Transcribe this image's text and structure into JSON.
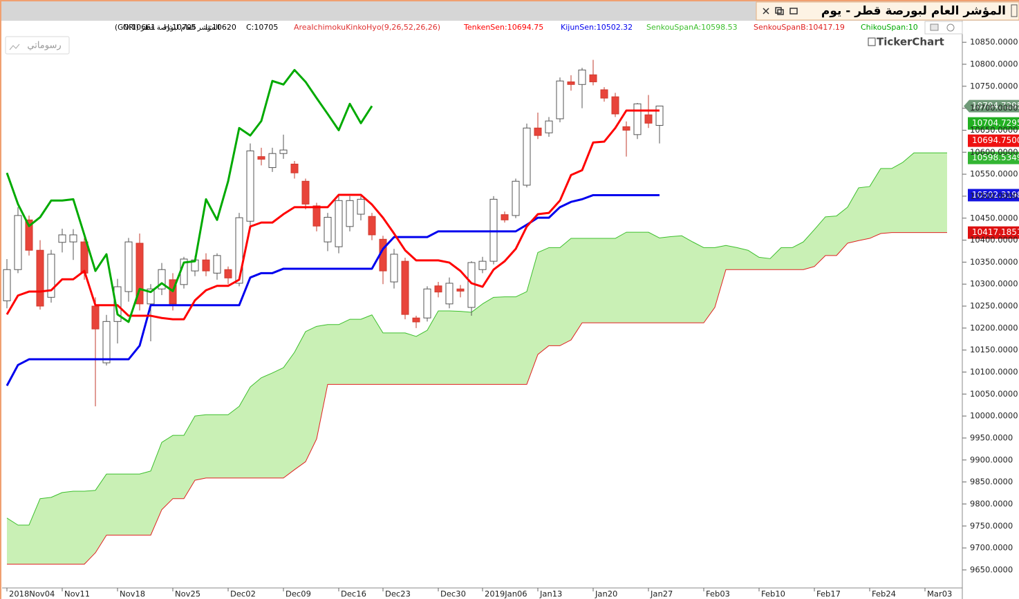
{
  "chart_data": {
    "type": "candlestick",
    "title": "المؤشر العام لبورصة قطر - يوم",
    "symbol": "المؤشر العام لبورصة قطر (GNRI)",
    "ohlc": [
      "O:10661",
      "H:10705",
      "L:10620",
      "C:10705"
    ],
    "indicator": "AreaIchimokuKinkoHyo(9,26,52,26,26)",
    "button_label": "رسوماتي",
    "watermark": "TickerChart",
    "up_color": "#ffffff",
    "down_color": "#e8443a",
    "cloud_color": "#c9f0b5",
    "categories": [
      "2018Nov04",
      null,
      null,
      null,
      null,
      "Nov11",
      null,
      null,
      null,
      null,
      "Nov18",
      null,
      null,
      null,
      null,
      "Nov25",
      null,
      null,
      null,
      null,
      "Dec02",
      null,
      null,
      null,
      null,
      "Dec09",
      null,
      null,
      null,
      null,
      "Dec16",
      null,
      null,
      null,
      "Dec23",
      null,
      null,
      null,
      null,
      "Dec30",
      null,
      null,
      null,
      "2019Jan06",
      null,
      null,
      null,
      null,
      "Jan13",
      null,
      null,
      null,
      null,
      "Jan20",
      null,
      null,
      null,
      null,
      "Jan27",
      null,
      null,
      null,
      null,
      "Feb03",
      null,
      null,
      null,
      null,
      "Feb10",
      null,
      null,
      null,
      null,
      "Feb17",
      null,
      null,
      null,
      null,
      "Feb24",
      null,
      null,
      null,
      null,
      "Mar03",
      null,
      null
    ],
    "open": [
      10262,
      10333,
      10446,
      10377,
      10270,
      10395,
      10396,
      10396,
      10250,
      10121,
      10215,
      10283,
      10393,
      10255,
      10289,
      10310,
      10299,
      10330,
      10355,
      10325,
      10333,
      10302,
      10443,
      10590,
      10565,
      10597,
      10573,
      10534,
      10478,
      10396,
      10385,
      10431,
      10459,
      10454,
      10402,
      10305,
      10352,
      10223,
      10223,
      10296,
      10255,
      10289,
      10247,
      10333,
      10352,
      10458,
      10456,
      10525,
      10655,
      10644,
      10676,
      10760,
      10754,
      10776,
      10742,
      10726,
      10658,
      10640,
      10685,
      10661,
      null,
      null,
      null,
      null,
      null,
      null,
      null,
      null,
      null,
      null,
      null,
      null,
      null,
      null,
      null,
      null,
      null,
      null,
      null,
      null,
      null,
      null,
      null,
      null,
      null,
      null
    ],
    "high": [
      10357,
      10475,
      10456,
      10400,
      10378,
      10426,
      10425,
      10405,
      10270,
      10230,
      10312,
      10405,
      10415,
      10300,
      10348,
      10325,
      10362,
      10364,
      10370,
      10370,
      10340,
      10462,
      10620,
      10610,
      10610,
      10640,
      10580,
      10540,
      10485,
      10462,
      10505,
      10500,
      10500,
      10462,
      10410,
      10380,
      10360,
      10228,
      10295,
      10305,
      10315,
      10298,
      10352,
      10362,
      10500,
      10465,
      10540,
      10665,
      10690,
      10680,
      10770,
      10775,
      10792,
      10810,
      10748,
      10735,
      10670,
      10712,
      10730,
      10705,
      null,
      null,
      null,
      null,
      null,
      null,
      null,
      null,
      null,
      null,
      null,
      null,
      null,
      null,
      null,
      null,
      null,
      null,
      null,
      null,
      null,
      null,
      null,
      null,
      null,
      null
    ],
    "low": [
      10245,
      10325,
      10365,
      10242,
      10258,
      10372,
      10355,
      10310,
      10022,
      10115,
      10165,
      10260,
      10240,
      10170,
      10275,
      10240,
      10290,
      10318,
      10318,
      10310,
      10300,
      10295,
      10430,
      10570,
      10555,
      10585,
      10540,
      10470,
      10420,
      10375,
      10370,
      10420,
      10445,
      10400,
      10300,
      10290,
      10220,
      10200,
      10215,
      10270,
      10245,
      10270,
      10228,
      10325,
      10345,
      10440,
      10450,
      10520,
      10630,
      10635,
      10668,
      10740,
      10700,
      10752,
      10715,
      10680,
      10590,
      10630,
      10655,
      10620,
      null,
      null,
      null,
      null,
      null,
      null,
      null,
      null,
      null,
      null,
      null,
      null,
      null,
      null,
      null,
      null,
      null,
      null,
      null,
      null,
      null,
      null,
      null,
      null,
      null,
      null
    ],
    "close": [
      10333,
      10456,
      10377,
      10250,
      10368,
      10412,
      10412,
      10325,
      10198,
      10215,
      10294,
      10396,
      10255,
      10289,
      10333,
      10255,
      10357,
      10355,
      10330,
      10365,
      10314,
      10451,
      10603,
      10584,
      10597,
      10605,
      10553,
      10482,
      10432,
      10452,
      10490,
      10490,
      10493,
      10412,
      10330,
      10368,
      10231,
      10214,
      10289,
      10282,
      10302,
      10284,
      10349,
      10352,
      10493,
      10446,
      10534,
      10655,
      10638,
      10671,
      10762,
      10754,
      10787,
      10760,
      10723,
      10687,
      10650,
      10710,
      10666,
      10705,
      null,
      null,
      null,
      null,
      null,
      null,
      null,
      null,
      null,
      null,
      null,
      null,
      null,
      null,
      null,
      null,
      null,
      null,
      null,
      null,
      null,
      null,
      null,
      null,
      null,
      null
    ],
    "series": [
      {
        "name": "TenkenSen:10694.75",
        "color": "#ff0000",
        "values": [
          10231,
          10274,
          10283,
          10283,
          10286,
          10311,
          10311,
          10330,
          10252,
          10252,
          10252,
          10228,
          10228,
          10228,
          10223,
          10220,
          10220,
          10263,
          10286,
          10296,
          10296,
          10310,
          10431,
          10440,
          10440,
          10459,
          10475,
          10475,
          10475,
          10475,
          10503,
          10503,
          10503,
          10481,
          10451,
          10415,
          10377,
          10354,
          10354,
          10354,
          10349,
          10330,
          10302,
          10294,
          10333,
          10352,
          10380,
          10431,
          10459,
          10462,
          10490,
          10548,
          10559,
          10622,
          10624,
          10655,
          10694.75,
          10694.75,
          10694.75,
          10694.75,
          null,
          null,
          null,
          null,
          null,
          null,
          null,
          null,
          null,
          null,
          null,
          null,
          null,
          null,
          null,
          null,
          null,
          null,
          null,
          null,
          null,
          null,
          null,
          null,
          null,
          null
        ]
      },
      {
        "name": "KijunSen:10502.32",
        "color": "#0000ee",
        "values": [
          10069,
          10116,
          10129,
          10129,
          10129,
          10129,
          10129,
          10129,
          10129,
          10129,
          10129,
          10129,
          10160,
          10252,
          10252,
          10252,
          10252,
          10252,
          10252,
          10252,
          10252,
          10252,
          10315,
          10325,
          10325,
          10335,
          10335,
          10335,
          10335,
          10335,
          10335,
          10335,
          10335,
          10335,
          10380,
          10407,
          10407,
          10407,
          10407,
          10420,
          10420,
          10420,
          10420,
          10420,
          10420,
          10420,
          10420,
          10435,
          10451,
          10451,
          10475,
          10487,
          10493,
          10502.32,
          10502.32,
          10502.32,
          10502.32,
          10502.32,
          10502.32,
          10502.32,
          null,
          null,
          null,
          null,
          null,
          null,
          null,
          null,
          null,
          null,
          null,
          null,
          null,
          null,
          null,
          null,
          null,
          null,
          null,
          null,
          null,
          null,
          null,
          null,
          null,
          null
        ]
      },
      {
        "name": "SenkouSpanA:10598.53",
        "color": "#3cbf2c",
        "values": [
          9768,
          9752,
          9752,
          9812,
          9815,
          9826,
          9829,
          9829,
          9831,
          9868,
          9868,
          9868,
          9868,
          9875,
          9940,
          9956,
          9956,
          10000,
          10003,
          10003,
          10003,
          10022,
          10066,
          10087,
          10098,
          10110,
          10145,
          10192,
          10204,
          10208,
          10208,
          10220,
          10220,
          10230,
          10189,
          10189,
          10189,
          10181,
          10195,
          10239,
          10239,
          10238,
          10236,
          10255,
          10270,
          10271,
          10271,
          10283,
          10372,
          10383,
          10383,
          10404,
          10404,
          10404,
          10404,
          10404,
          10418,
          10418,
          10418,
          10405,
          10408,
          10410,
          10396,
          10383,
          10383,
          10388,
          10383,
          10377,
          10361,
          10358,
          10383,
          10383,
          10396,
          10424,
          10453,
          10455,
          10475,
          10519,
          10522,
          10563,
          10563,
          10577,
          10598.53,
          10598.53,
          10598.53,
          10598.53
        ]
      },
      {
        "name": "SenkouSpanB:10417.19",
        "color": "#e02020",
        "values": [
          9663,
          9663,
          9663,
          9663,
          9663,
          9663,
          9663,
          9663,
          9689,
          9729,
          9729,
          9729,
          9729,
          9729,
          9787,
          9812,
          9812,
          9854,
          9859,
          9859,
          9859,
          9859,
          9859,
          9859,
          9859,
          9859,
          9878,
          9896,
          9948,
          10072,
          10072,
          10072,
          10072,
          10072,
          10072,
          10072,
          10072,
          10072,
          10072,
          10072,
          10072,
          10072,
          10072,
          10072,
          10072,
          10072,
          10072,
          10072,
          10140,
          10160,
          10160,
          10173,
          10212,
          10212,
          10212,
          10212,
          10212,
          10212,
          10212,
          10212,
          10212,
          10212,
          10212,
          10212,
          10247,
          10333,
          10333,
          10333,
          10333,
          10333,
          10333,
          10333,
          10333,
          10340,
          10365,
          10365,
          10393,
          10399,
          10404,
          10415,
          10417.19,
          10417.19,
          10417.19,
          10417.19,
          10417.19,
          10417.19
        ]
      },
      {
        "name": "ChikouSpan:10",
        "color": "#00aa00",
        "values": [
          10553,
          10482,
          10432,
          10452,
          10490,
          10490,
          10493,
          10412,
          10330,
          10368,
          10231,
          10214,
          10289,
          10282,
          10302,
          10284,
          10349,
          10352,
          10493,
          10446,
          10534,
          10655,
          10638,
          10671,
          10762,
          10754,
          10787,
          10760,
          10723,
          10687,
          10650,
          10710,
          10666,
          10705,
          null,
          null,
          null,
          null,
          null,
          null,
          null,
          null,
          null,
          null,
          null,
          null,
          null,
          null,
          null,
          null,
          null,
          null,
          null,
          null,
          null,
          null,
          null,
          null,
          null,
          null,
          null,
          null,
          null,
          null,
          null,
          null,
          null,
          null,
          null,
          null,
          null,
          null,
          null,
          null,
          null,
          null,
          null,
          null,
          null,
          null,
          null,
          null,
          null,
          null,
          null,
          null
        ]
      }
    ],
    "ylim": [
      9609,
      10899
    ],
    "yticks": [
      {
        "value": 9650,
        "label": "9650.0000"
      },
      {
        "value": 9700,
        "label": "9700.0000"
      },
      {
        "value": 9750,
        "label": "9750.0000"
      },
      {
        "value": 9800,
        "label": "9800.0000"
      },
      {
        "value": 9850,
        "label": "9850.0000"
      },
      {
        "value": 9900,
        "label": "9900.0000"
      },
      {
        "value": 9950,
        "label": "9950.0000"
      },
      {
        "value": 10000,
        "label": "10000.0000"
      },
      {
        "value": 10050,
        "label": "10050.0000"
      },
      {
        "value": 10100,
        "label": "10100.0000"
      },
      {
        "value": 10150,
        "label": "10150.0000"
      },
      {
        "value": 10200,
        "label": "10200.0000"
      },
      {
        "value": 10250,
        "label": "10250.0000"
      },
      {
        "value": 10300,
        "label": "10300.0000"
      },
      {
        "value": 10350,
        "label": "10350.0000"
      },
      {
        "value": 10400,
        "label": "10400.0000"
      },
      {
        "value": 10450,
        "label": "10450.0000"
      },
      {
        "value": 10500,
        "label": "10500.0000"
      },
      {
        "value": 10550,
        "label": "10550.0000"
      },
      {
        "value": 10600,
        "label": "10600.0000"
      },
      {
        "value": 10650,
        "label": "10650.0000"
      },
      {
        "value": 10700,
        "label": "10700.0000"
      },
      {
        "value": 10750,
        "label": "10750.0000"
      },
      {
        "value": 10800,
        "label": "10800.0000"
      },
      {
        "value": 10850,
        "label": "10850.0000"
      }
    ],
    "price_tags": [
      {
        "value": 10704.7295,
        "label": "10704.7295",
        "color": "#6f9a78"
      },
      {
        "value": 10704.7295,
        "label": "10704.7295",
        "color": "#22b022"
      },
      {
        "value": 10694.75,
        "label": "10694.7500",
        "color": "#ee1111"
      },
      {
        "value": 10598.5349,
        "label": "10598.5349",
        "color": "#33b533"
      },
      {
        "value": 10502.3198,
        "label": "10502.3198",
        "color": "#1414e0"
      },
      {
        "value": 10417.1851,
        "label": "10417.1851",
        "color": "#dd1111"
      }
    ]
  }
}
